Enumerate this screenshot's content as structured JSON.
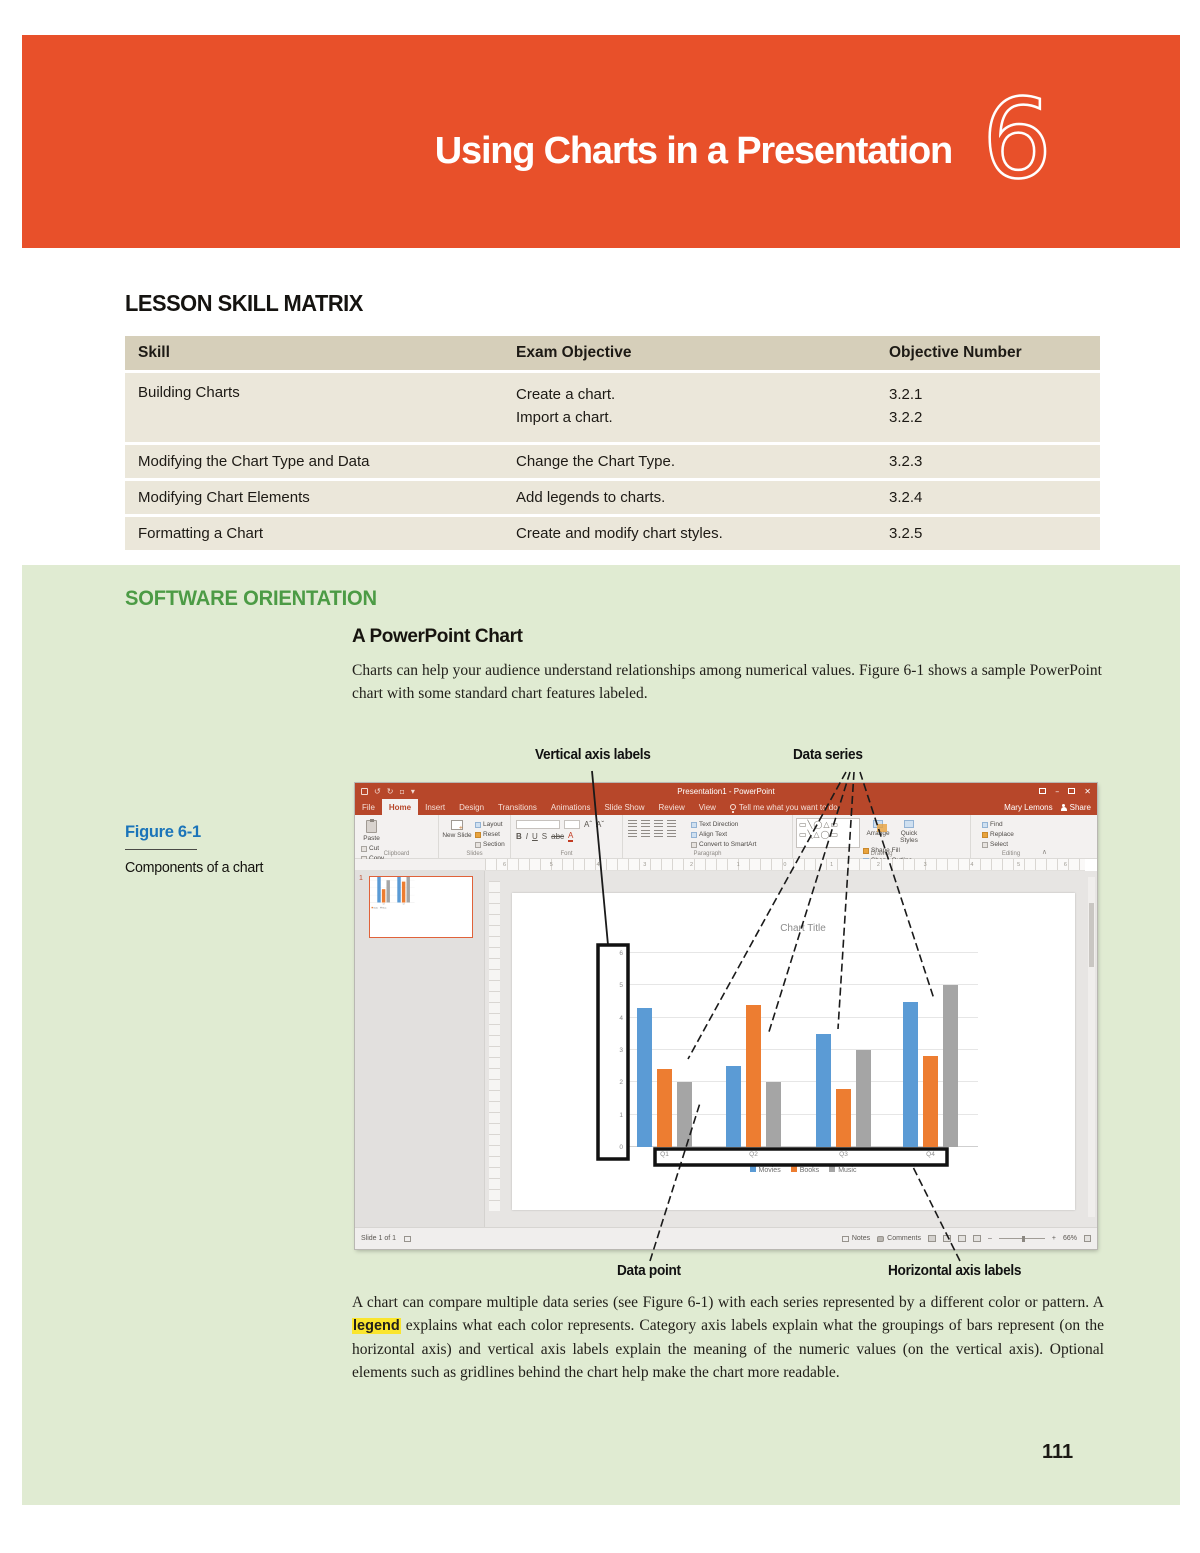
{
  "banner": {
    "title": "Using Charts in a Presentation",
    "number": "6",
    "accent_color": "#E8502A"
  },
  "lesson_skill_matrix": {
    "heading": "LESSON SKILL MATRIX",
    "columns": [
      "Skill",
      "Exam Objective",
      "Objective Number"
    ],
    "rows": [
      {
        "skill": "Building Charts",
        "objectives": [
          "Create a chart.",
          "Import a chart."
        ],
        "numbers": [
          "3.2.1",
          "3.2.2"
        ]
      },
      {
        "skill": "Modifying the Chart Type and Data",
        "objectives": [
          "Change the Chart Type."
        ],
        "numbers": [
          "3.2.3"
        ]
      },
      {
        "skill": "Modifying Chart Elements",
        "objectives": [
          "Add legends to charts."
        ],
        "numbers": [
          "3.2.4"
        ]
      },
      {
        "skill": "Formatting a Chart",
        "objectives": [
          "Create and modify chart styles."
        ],
        "numbers": [
          "3.2.5"
        ]
      }
    ]
  },
  "software_orientation": {
    "heading": "SOFTWARE ORIENTATION",
    "subheading": "A PowerPoint Chart",
    "intro": "Charts can help your audience understand relationships among numerical values. Figure 6-1 shows a sample PowerPoint chart with some standard chart features labeled.",
    "figure": {
      "label": "Figure 6-1",
      "caption": "Components of a chart"
    },
    "callouts": {
      "vertical_axis": "Vertical axis labels",
      "data_series": "Data series",
      "data_point": "Data point",
      "horizontal_axis": "Horizontal axis labels"
    },
    "body": {
      "before": "A chart can compare multiple data series (see Figure 6-1) with each series represented by a different color or pattern. A ",
      "keyword": "legend",
      "after": " explains what each color represents. Category axis labels explain what the groupings of bars represent (on the horizontal axis) and vertical axis labels explain the meaning of the numeric values (on the vertical axis). Optional elements such as gridlines behind the chart help make the chart more readable."
    }
  },
  "page_number": "111",
  "powerpoint": {
    "titlebar": {
      "title": "Presentation1 - PowerPoint"
    },
    "tabs": [
      "File",
      "Home",
      "Insert",
      "Design",
      "Transitions",
      "Animations",
      "Slide Show",
      "Review",
      "View"
    ],
    "active_tab": "Home",
    "tell_me": "Tell me what you want to do",
    "user": "Mary Lemons",
    "share_label": "Share",
    "ribbon": {
      "clipboard": {
        "label": "Clipboard",
        "paste": "Paste",
        "items": [
          "Cut",
          "Copy",
          "Format Painter"
        ]
      },
      "slides": {
        "label": "Slides",
        "new_slide": "New Slide",
        "items": [
          "Layout",
          "Reset",
          "Section"
        ]
      },
      "font": {
        "label": "Font",
        "glyphs": [
          "B",
          "I",
          "U",
          "S",
          "abc"
        ]
      },
      "paragraph": {
        "label": "Paragraph",
        "items": [
          "Text Direction",
          "Align Text",
          "Convert to SmartArt"
        ]
      },
      "drawing": {
        "label": "Drawing",
        "buttons": [
          "Arrange",
          "Quick Styles"
        ],
        "items": [
          "Shape Fill",
          "Shape Outline",
          "Shape Effects"
        ]
      },
      "editing": {
        "label": "Editing",
        "items": [
          "Find",
          "Replace",
          "Select"
        ]
      }
    },
    "ruler_ticks": [
      "6",
      "5",
      "4",
      "3",
      "2",
      "1",
      "0",
      "1",
      "2",
      "3",
      "4",
      "5",
      "6"
    ],
    "slide_panel": {
      "slide_number": "1"
    },
    "statusbar": {
      "slide": "Slide 1 of 1",
      "notes": "Notes",
      "comments": "Comments",
      "zoom": "66%"
    }
  },
  "chart_data": {
    "type": "bar",
    "title": "Chart Title",
    "categories": [
      "Q1",
      "Q2",
      "Q3",
      "Q4"
    ],
    "series": [
      {
        "name": "Movies",
        "color": "#5B9BD5",
        "values": [
          4.3,
          2.5,
          3.5,
          4.5
        ]
      },
      {
        "name": "Books",
        "color": "#ED7D31",
        "values": [
          2.4,
          4.4,
          1.8,
          2.8
        ]
      },
      {
        "name": "Music",
        "color": "#A5A5A5",
        "values": [
          2.0,
          2.0,
          3.0,
          5.0
        ]
      }
    ],
    "ylim": [
      0,
      6
    ],
    "yticks": [
      0,
      1,
      2,
      3,
      4,
      5,
      6
    ],
    "xlabel": "",
    "ylabel": "",
    "grid": true,
    "legend_position": "bottom"
  }
}
